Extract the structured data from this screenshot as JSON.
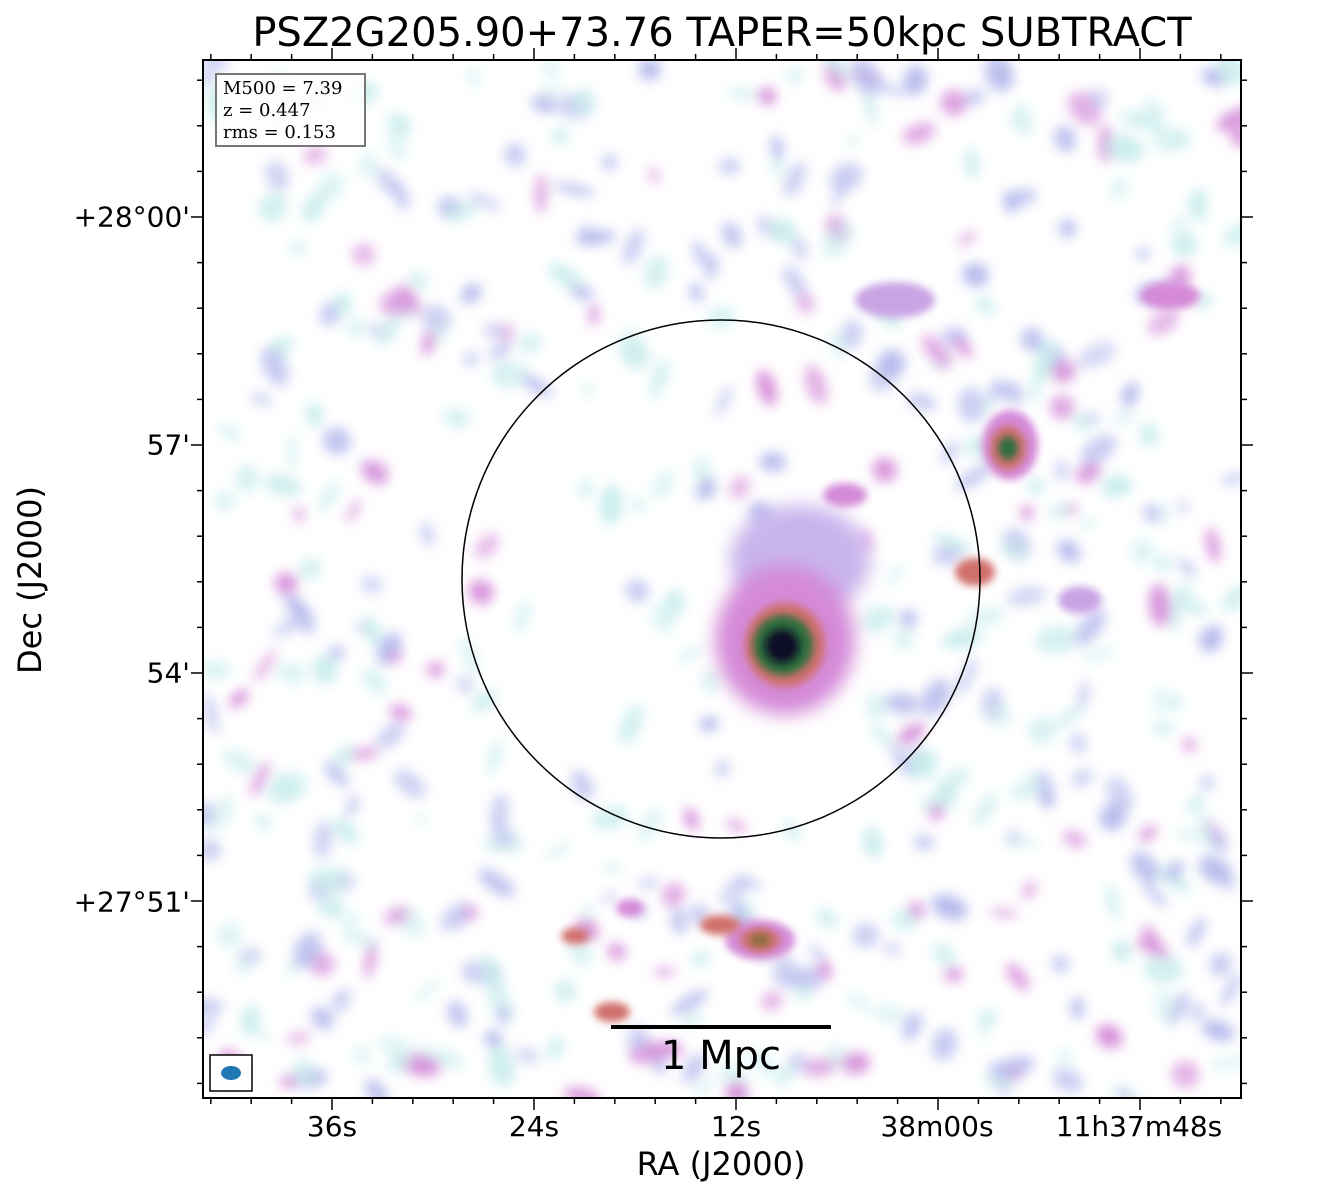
{
  "title": "PSZ2G205.90+73.76 TAPER=50kpc SUBTRACT",
  "axes": {
    "xlabel": "RA (J2000)",
    "ylabel": "Dec (J2000)",
    "xticks": [
      "36s",
      "24s",
      "12s",
      "38m00s",
      "11h37m48s"
    ],
    "yticks": [
      "+28°00'",
      "57'",
      "54'",
      "+27°51'"
    ]
  },
  "info": {
    "m500": "M500 = 7.39",
    "z": "z = 0.447",
    "rms": "rms = 0.153"
  },
  "scalebar": {
    "label": "1 Mpc"
  },
  "colors": {
    "faint": "#c8ecec",
    "low": "#b4b8ec",
    "mid": "#d48ad8",
    "high": "#d0706c",
    "peak_green": "#2e6e3c",
    "peak_core": "#0a0a28",
    "beam": "#1f77b4"
  }
}
